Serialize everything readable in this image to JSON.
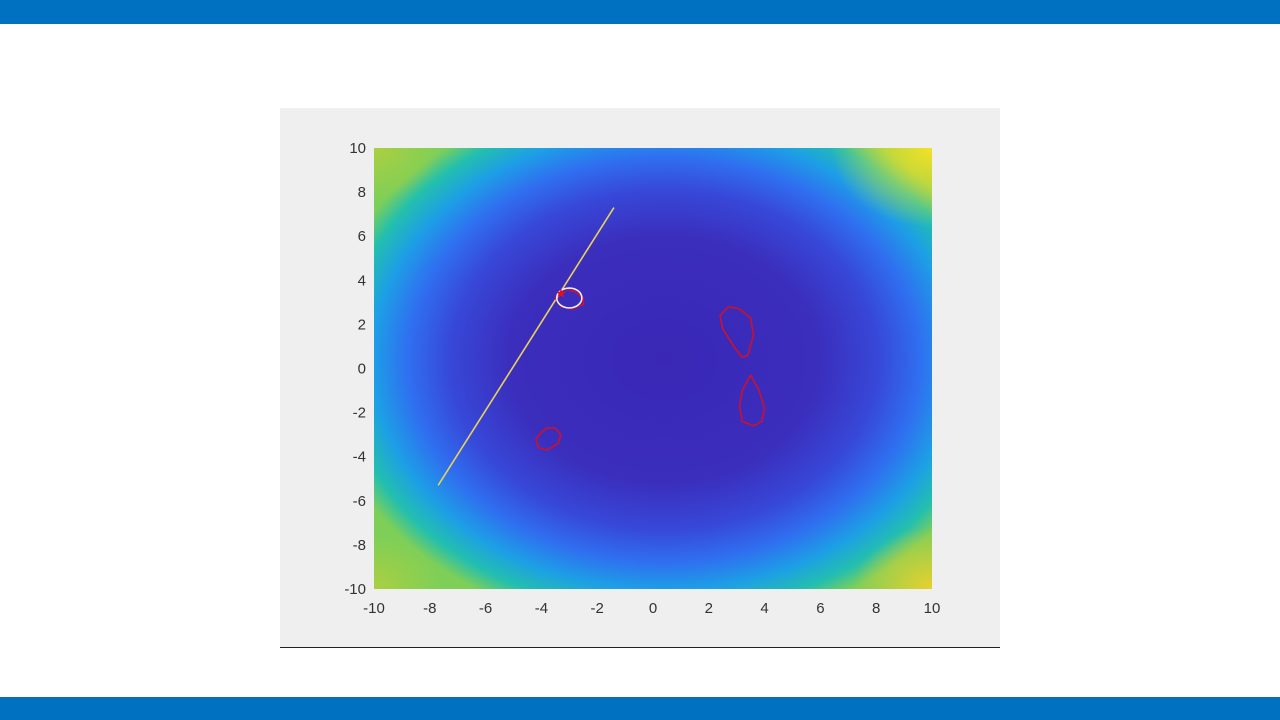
{
  "slide": {
    "top_bar_color": "#0070c0",
    "bottom_bar_color": "#0070c0",
    "figure_background": "#f0eff0"
  },
  "chart_data": {
    "type": "heatmap",
    "title": "",
    "xlabel": "",
    "ylabel": "",
    "xlim": [
      -10,
      10
    ],
    "ylim": [
      -10,
      10
    ],
    "xticks": [
      -10,
      -8,
      -6,
      -4,
      -2,
      0,
      2,
      4,
      6,
      8,
      10
    ],
    "yticks": [
      -10,
      -8,
      -6,
      -4,
      -2,
      0,
      2,
      4,
      6,
      8,
      10
    ],
    "colormap": "parula",
    "grid": false,
    "constraint_line": {
      "color": "#e8d25a",
      "from": [
        -7.7,
        -5.3
      ],
      "to": [
        -1.4,
        7.3
      ]
    },
    "red_contours": [
      {
        "color": "#d0102a",
        "points": [
          [
            -3.2,
            3.6
          ],
          [
            -2.8,
            3.5
          ],
          [
            -2.5,
            3.2
          ],
          [
            -2.5,
            2.9
          ],
          [
            -2.9,
            2.7
          ],
          [
            -3.3,
            2.8
          ],
          [
            -3.5,
            3.2
          ],
          [
            -3.2,
            3.6
          ]
        ]
      },
      {
        "color": "#d0102a",
        "points": [
          [
            2.7,
            2.8
          ],
          [
            3.1,
            2.7
          ],
          [
            3.5,
            2.3
          ],
          [
            3.6,
            1.5
          ],
          [
            3.4,
            0.6
          ],
          [
            3.2,
            0.5
          ],
          [
            2.9,
            1.0
          ],
          [
            2.5,
            1.8
          ],
          [
            2.4,
            2.4
          ],
          [
            2.7,
            2.8
          ]
        ]
      },
      {
        "color": "#d0102a",
        "points": [
          [
            3.5,
            -0.3
          ],
          [
            3.8,
            -1.0
          ],
          [
            4.0,
            -1.8
          ],
          [
            3.9,
            -2.4
          ],
          [
            3.6,
            -2.6
          ],
          [
            3.2,
            -2.4
          ],
          [
            3.1,
            -1.7
          ],
          [
            3.2,
            -1.0
          ],
          [
            3.5,
            -0.3
          ]
        ]
      },
      {
        "color": "#d0102a",
        "points": [
          [
            -3.8,
            -2.7
          ],
          [
            -3.5,
            -2.7
          ],
          [
            -3.3,
            -3.0
          ],
          [
            -3.4,
            -3.4
          ],
          [
            -3.8,
            -3.7
          ],
          [
            -4.1,
            -3.6
          ],
          [
            -4.2,
            -3.2
          ],
          [
            -4.0,
            -2.9
          ],
          [
            -3.8,
            -2.7
          ]
        ]
      }
    ],
    "white_contour": {
      "color": "#eeeeff",
      "center": [
        -3.0,
        3.2
      ],
      "rx": 0.45,
      "ry": 0.45
    },
    "marker": {
      "type": "star",
      "color": "#e01020",
      "x": -3.3,
      "y": 3.4
    }
  }
}
